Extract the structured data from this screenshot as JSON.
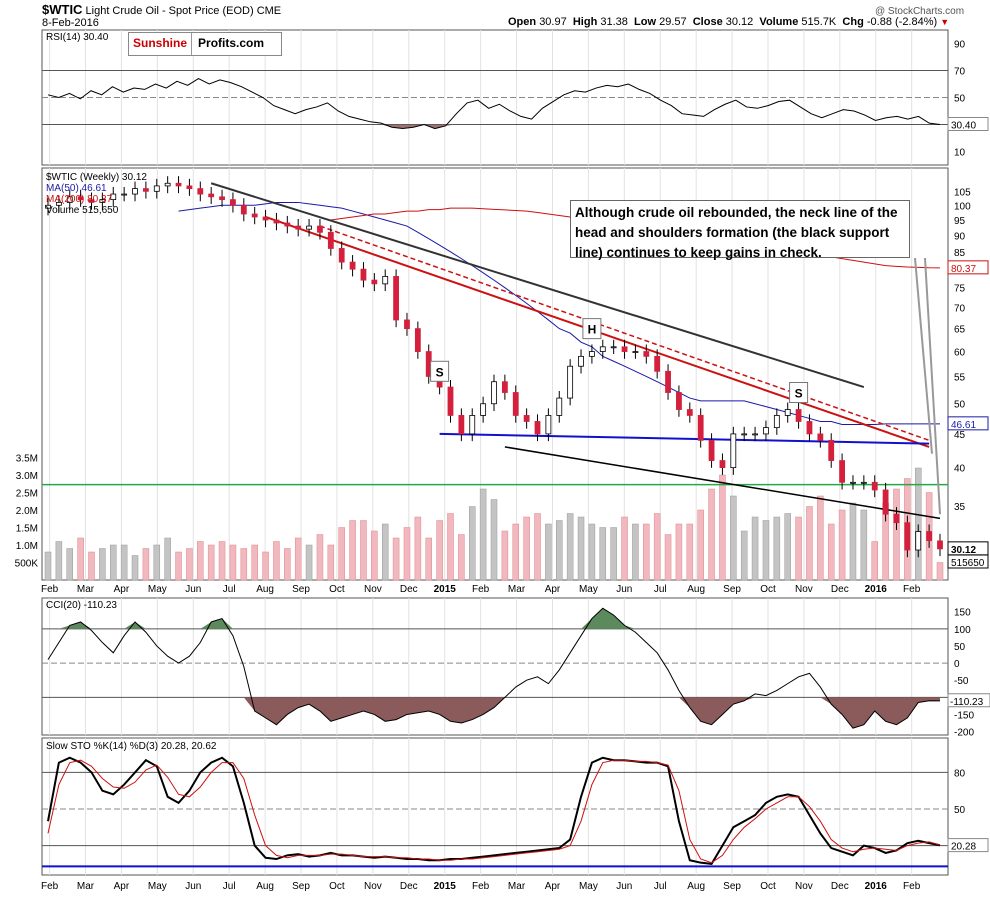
{
  "header": {
    "symbol": "$WTIC",
    "name": "Light Crude Oil - Spot Price (EOD)",
    "exchange": "CME",
    "date": "8-Feb-2016",
    "open_label": "Open",
    "open": "30.97",
    "high_label": "High",
    "high": "31.38",
    "low_label": "Low",
    "low": "29.57",
    "close_label": "Close",
    "close": "30.12",
    "volume_label": "Volume",
    "volume": "515.7K",
    "chg_label": "Chg",
    "chg": "-0.88 (-2.84%)",
    "copyright": "@ StockCharts.com"
  },
  "logo": {
    "part1": "Sunshine",
    "part2": "Profits.com"
  },
  "callout": "Although crude oil rebounded, the neck line of the head and shoulders formation (the black support line) continues to keep gains in check.",
  "colors": {
    "up_candle": "#ffffff",
    "down_candle": "#d4203c",
    "ma50": "#1a1aa8",
    "ma200": "#cc1111",
    "green_line": "#22aa44",
    "blue_line": "#1111cc",
    "rsi_fill": "#8b5a5a",
    "cci_pos_fill": "#5d8a5d"
  },
  "chart_data": [
    {
      "type": "line",
      "title": "RSI(14) 30.40",
      "y_ticks": [
        90,
        70,
        50,
        30,
        10
      ],
      "ylim": [
        0,
        100
      ],
      "reference_lines": [
        70,
        50,
        30
      ],
      "last_value_label": "30.40",
      "values": [
        52,
        50,
        53,
        49,
        55,
        52,
        58,
        54,
        57,
        56,
        60,
        57,
        62,
        59,
        64,
        60,
        63,
        61,
        58,
        54,
        50,
        44,
        41,
        38,
        41,
        43,
        46,
        40,
        36,
        34,
        32,
        31,
        28,
        27,
        28,
        30,
        27,
        29,
        38,
        46,
        48,
        42,
        45,
        40,
        36,
        34,
        42,
        47,
        52,
        55,
        54,
        57,
        59,
        58,
        60,
        56,
        53,
        48,
        44,
        38,
        37,
        36,
        41,
        45,
        48,
        43,
        42,
        44,
        47,
        48,
        43,
        38,
        35,
        38,
        41,
        40,
        37,
        33,
        35,
        36,
        34,
        36,
        31,
        30
      ]
    },
    {
      "type": "candlestick",
      "title": "$WTIC (Weekly) 30.12",
      "legend": [
        {
          "name": "$WTIC (Weekly) 30.12"
        },
        {
          "name": "MA(50) 46.61",
          "color": "#1a1aa8"
        },
        {
          "name": "MA(200) 80.37",
          "color": "#cc1111"
        },
        {
          "name": "Volume 515,650"
        }
      ],
      "y_ticks": [
        105,
        100,
        95,
        90,
        85,
        80,
        75,
        70,
        65,
        60,
        55,
        50,
        45,
        40,
        35
      ],
      "y_scale": "log",
      "ylim": [
        30,
        110
      ],
      "x_labels": [
        "Feb",
        "Mar",
        "Apr",
        "May",
        "Jun",
        "Jul",
        "Aug",
        "Sep",
        "Oct",
        "Nov",
        "Dec",
        "2015",
        "Feb",
        "Mar",
        "Apr",
        "May",
        "Jun",
        "Jul",
        "Aug",
        "Sep",
        "Oct",
        "Nov",
        "Dec",
        "2016",
        "Feb"
      ],
      "closes": [
        100,
        101,
        103,
        102,
        101,
        102,
        104,
        104,
        106,
        105,
        107,
        108,
        107,
        106,
        104,
        103,
        102,
        100,
        97,
        96,
        95,
        94,
        93,
        92,
        93,
        91,
        86,
        82,
        80,
        77,
        76,
        78,
        67,
        65,
        60,
        55,
        53,
        48,
        45,
        48,
        50,
        54,
        52,
        48,
        47,
        45,
        48,
        51,
        57,
        59,
        60,
        61,
        61,
        60,
        60,
        59,
        56,
        52,
        49,
        48,
        44,
        41,
        40,
        45,
        45,
        45,
        46,
        48,
        49,
        47,
        45,
        44,
        41,
        38,
        38,
        38,
        37,
        34,
        33,
        30,
        32,
        31,
        30.12
      ],
      "opens": [
        99,
        100,
        101,
        103,
        102,
        101,
        102,
        104,
        104,
        106,
        105,
        107,
        108,
        107,
        106,
        104,
        103,
        102,
        100,
        97,
        96,
        95,
        94,
        93,
        92,
        93,
        91,
        86,
        82,
        80,
        77,
        76,
        78,
        67,
        65,
        60,
        55,
        53,
        48,
        45,
        48,
        50,
        54,
        52,
        48,
        47,
        45,
        48,
        51,
        57,
        59,
        60,
        61,
        61,
        60,
        60,
        59,
        56,
        52,
        49,
        48,
        44,
        41,
        40,
        45,
        45,
        45,
        46,
        48,
        49,
        47,
        45,
        44,
        41,
        38,
        38,
        38,
        37,
        34,
        33,
        30,
        32,
        30.97
      ],
      "ma50": [
        98,
        98.5,
        99,
        99.5,
        100,
        100,
        100,
        100,
        100.5,
        101,
        101,
        101,
        100.5,
        100,
        99.5,
        99,
        98,
        97,
        96,
        95,
        94,
        93,
        91,
        89,
        87,
        85,
        83,
        81,
        79,
        77,
        75,
        73,
        71,
        69,
        67,
        65,
        64,
        62,
        61,
        59,
        58,
        57,
        56,
        55,
        54,
        53,
        52,
        51,
        50.5,
        50.5,
        50.5,
        50.5,
        50.5,
        50,
        49.5,
        49,
        48.5,
        48,
        47.5,
        47,
        47,
        46.5,
        46.5,
        46.5,
        46.5,
        46.6,
        46.6,
        46.6,
        46.6,
        46.6,
        46.61
      ],
      "ma200": [
        95,
        95.5,
        96,
        96.5,
        97,
        97,
        97.5,
        98,
        98,
        98.5,
        98.5,
        99,
        99,
        99,
        98.8,
        98.6,
        98.4,
        98.2,
        98,
        97.5,
        97,
        96.5,
        96,
        95.5,
        95,
        94,
        93.5,
        93,
        92.5,
        92,
        91.5,
        91,
        90.5,
        90,
        89.5,
        89,
        88.5,
        88,
        87.5,
        87,
        86.5,
        86,
        85.5,
        85,
        84.5,
        84,
        83.5,
        83,
        82.5,
        82,
        81.5,
        81,
        80.8,
        80.6,
        80.5,
        80.4,
        80.37
      ],
      "ma50_last_label": "46.61",
      "ma200_last_label": "80.37",
      "close_label": "30.12",
      "volume_axis_labels": [
        "3.5M",
        "3.0M",
        "2.5M",
        "2.0M",
        "1.5M",
        "1.0M",
        "500K"
      ],
      "volume_last_label": "515650",
      "volume_m": [
        0.8,
        1.1,
        0.9,
        1.2,
        0.8,
        0.9,
        1.0,
        1.0,
        0.7,
        0.9,
        1.0,
        1.2,
        0.8,
        0.9,
        1.1,
        1.0,
        1.1,
        1.0,
        0.9,
        1.0,
        0.8,
        1.1,
        0.9,
        1.2,
        1.0,
        1.3,
        1.0,
        1.5,
        1.7,
        1.7,
        1.4,
        1.6,
        1.2,
        1.5,
        1.8,
        1.2,
        1.7,
        1.9,
        1.3,
        2.1,
        2.6,
        2.3,
        1.4,
        1.6,
        1.8,
        1.9,
        1.6,
        1.7,
        1.9,
        1.8,
        1.6,
        1.5,
        1.5,
        1.8,
        1.6,
        1.6,
        1.9,
        1.3,
        1.6,
        1.6,
        2.0,
        2.6,
        3.0,
        2.4,
        1.4,
        1.8,
        1.7,
        1.8,
        1.9,
        1.8,
        2.1,
        2.4,
        1.6,
        2.0,
        2.2,
        2.0,
        1.1,
        2.2,
        2.6,
        2.9,
        3.2,
        2.5,
        0.5
      ],
      "annotations": [
        "S",
        "H",
        "S"
      ],
      "lines": [
        {
          "name": "black upper resistance line",
          "color": "#333333"
        },
        {
          "name": "red declining resistance line",
          "color": "#cc1111"
        },
        {
          "name": "red dashed resistance line",
          "color": "#cc1111"
        },
        {
          "name": "blue neckline",
          "color": "#1111cc"
        },
        {
          "name": "black support line",
          "color": "#000000"
        },
        {
          "name": "green horizontal line",
          "color": "#22aa44"
        }
      ]
    },
    {
      "type": "area",
      "title": "CCI(20) -110.23",
      "y_ticks": [
        150,
        100,
        50,
        0,
        -50,
        -100,
        -150,
        -200
      ],
      "ylim": [
        -210,
        190
      ],
      "reference_lines": [
        100,
        0,
        -100
      ],
      "last_value_label": "-110.23",
      "values": [
        10,
        60,
        110,
        120,
        95,
        60,
        30,
        80,
        120,
        90,
        50,
        20,
        0,
        20,
        60,
        120,
        130,
        80,
        -10,
        -140,
        -160,
        -180,
        -150,
        -130,
        -120,
        -140,
        -170,
        -160,
        -150,
        -140,
        -150,
        -170,
        -165,
        -150,
        -145,
        -140,
        -150,
        -170,
        -175,
        -165,
        -150,
        -130,
        -100,
        -70,
        -50,
        -40,
        -60,
        -20,
        30,
        80,
        130,
        160,
        140,
        110,
        90,
        60,
        30,
        -20,
        -80,
        -130,
        -170,
        -180,
        -150,
        -120,
        -110,
        -90,
        -95,
        -80,
        -60,
        -40,
        -30,
        -70,
        -120,
        -150,
        -190,
        -180,
        -140,
        -170,
        -180,
        -160,
        -115,
        -110,
        -110.23
      ]
    },
    {
      "type": "line",
      "title": "Slow STO %K(14) %D(3) 20.28, 20.62",
      "y_ticks": [
        80,
        50,
        20
      ],
      "ylim": [
        0,
        100
      ],
      "reference_lines": [
        80,
        50,
        20
      ],
      "series": [
        {
          "name": "%K(14)",
          "color": "#000000",
          "last_value": "20.28",
          "values": [
            40,
            88,
            92,
            88,
            80,
            65,
            62,
            70,
            80,
            90,
            85,
            60,
            55,
            65,
            80,
            88,
            92,
            85,
            55,
            20,
            10,
            9,
            12,
            13,
            11,
            12,
            14,
            12,
            12,
            11,
            10,
            11,
            10,
            9,
            9,
            8,
            8,
            9,
            9,
            10,
            11,
            12,
            13,
            14,
            15,
            16,
            17,
            18,
            25,
            60,
            88,
            92,
            90,
            90,
            89,
            88,
            88,
            85,
            40,
            8,
            6,
            5,
            20,
            35,
            40,
            45,
            55,
            60,
            62,
            60,
            45,
            30,
            18,
            15,
            12,
            20,
            18,
            14,
            16,
            22,
            24,
            22,
            20.28
          ]
        },
        {
          "name": "%D(3)",
          "color": "#cc1111",
          "last_value": "20.62",
          "values": [
            30,
            70,
            88,
            90,
            85,
            75,
            68,
            67,
            72,
            82,
            86,
            76,
            62,
            60,
            68,
            80,
            88,
            88,
            75,
            45,
            20,
            12,
            10,
            12,
            12,
            12,
            13,
            13,
            12,
            11,
            11,
            11,
            10,
            10,
            9,
            9,
            8,
            8,
            9,
            9,
            10,
            11,
            12,
            13,
            14,
            15,
            16,
            17,
            20,
            40,
            70,
            88,
            90,
            90,
            89,
            89,
            88,
            86,
            65,
            25,
            9,
            6,
            12,
            25,
            35,
            42,
            50,
            55,
            60,
            60,
            52,
            40,
            25,
            18,
            15,
            17,
            18,
            17,
            16,
            20,
            22,
            23,
            20.62
          ]
        }
      ],
      "blue_baseline": 3
    }
  ],
  "x_axis_labels": [
    "Feb",
    "Mar",
    "Apr",
    "May",
    "Jun",
    "Jul",
    "Aug",
    "Sep",
    "Oct",
    "Nov",
    "Dec",
    "2015",
    "Feb",
    "Mar",
    "Apr",
    "May",
    "Jun",
    "Jul",
    "Aug",
    "Sep",
    "Oct",
    "Nov",
    "Dec",
    "2016",
    "Feb"
  ]
}
